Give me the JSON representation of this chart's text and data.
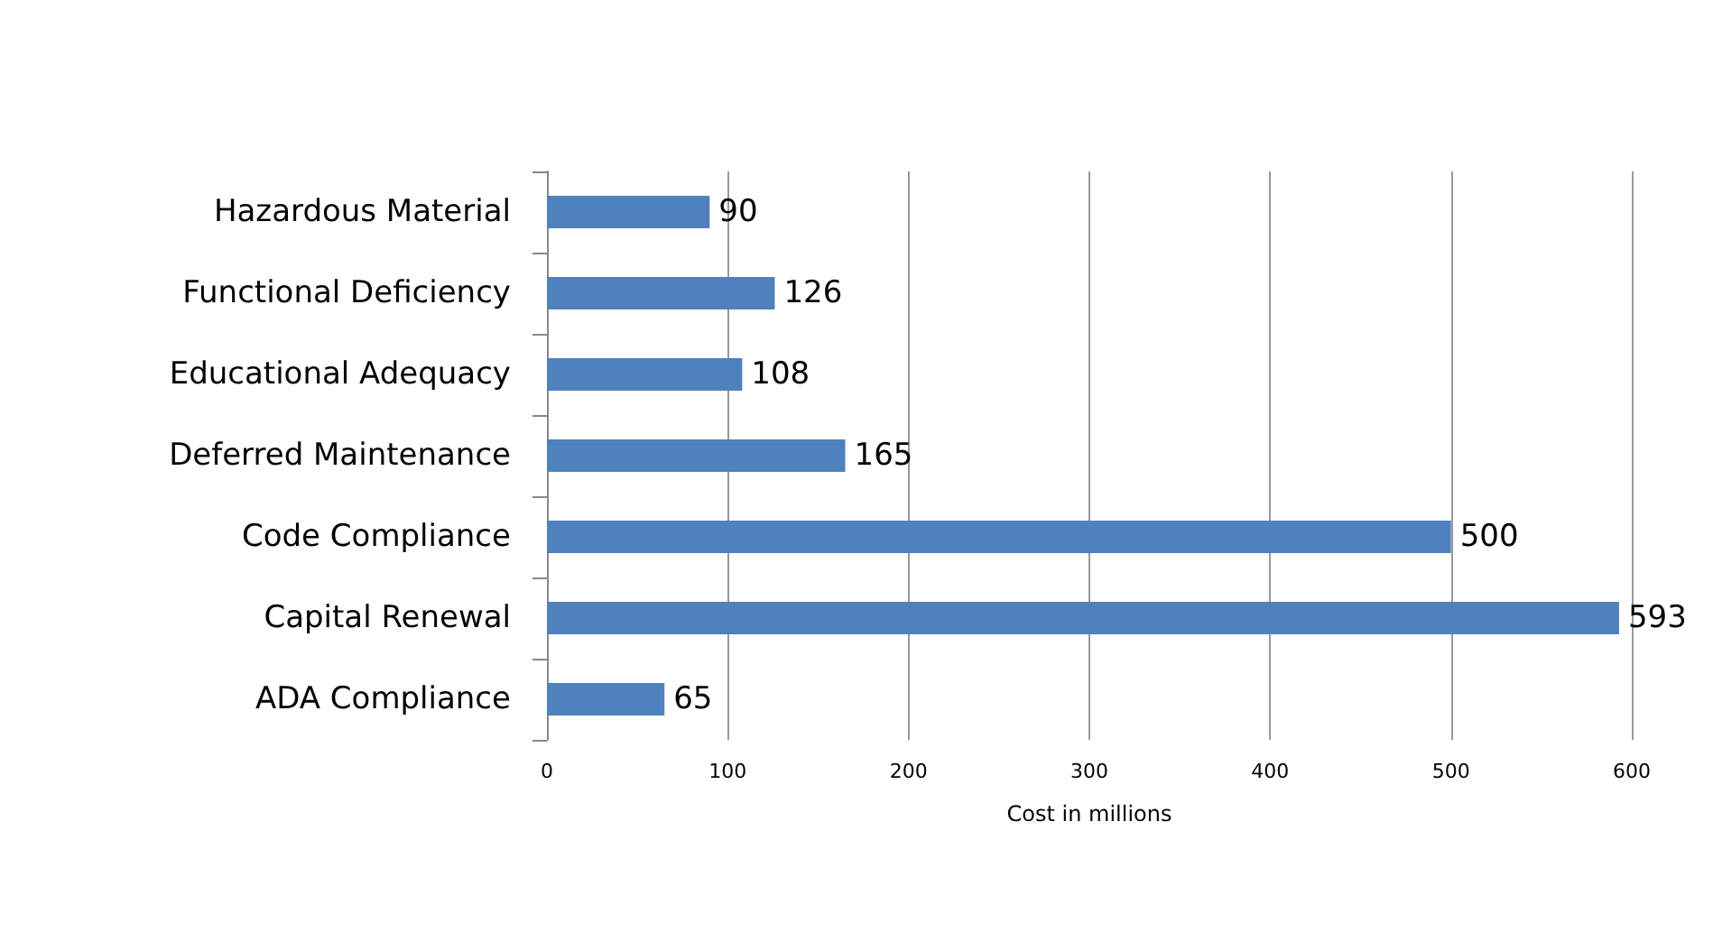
{
  "chart_data": {
    "type": "bar",
    "orientation": "horizontal",
    "categories": [
      "Hazardous Material",
      "Functional Deficiency",
      "Educational Adequacy",
      "Deferred Maintenance",
      "Code Compliance",
      "Capital Renewal",
      "ADA Compliance"
    ],
    "values": [
      90,
      126,
      108,
      165,
      500,
      593,
      65
    ],
    "color": "#4f81bd",
    "xlim": [
      0,
      600
    ],
    "xticks": [
      0,
      100,
      200,
      300,
      400,
      500,
      600
    ],
    "xlabel": "Cost in millions",
    "grid": "x",
    "data_labels": true
  }
}
